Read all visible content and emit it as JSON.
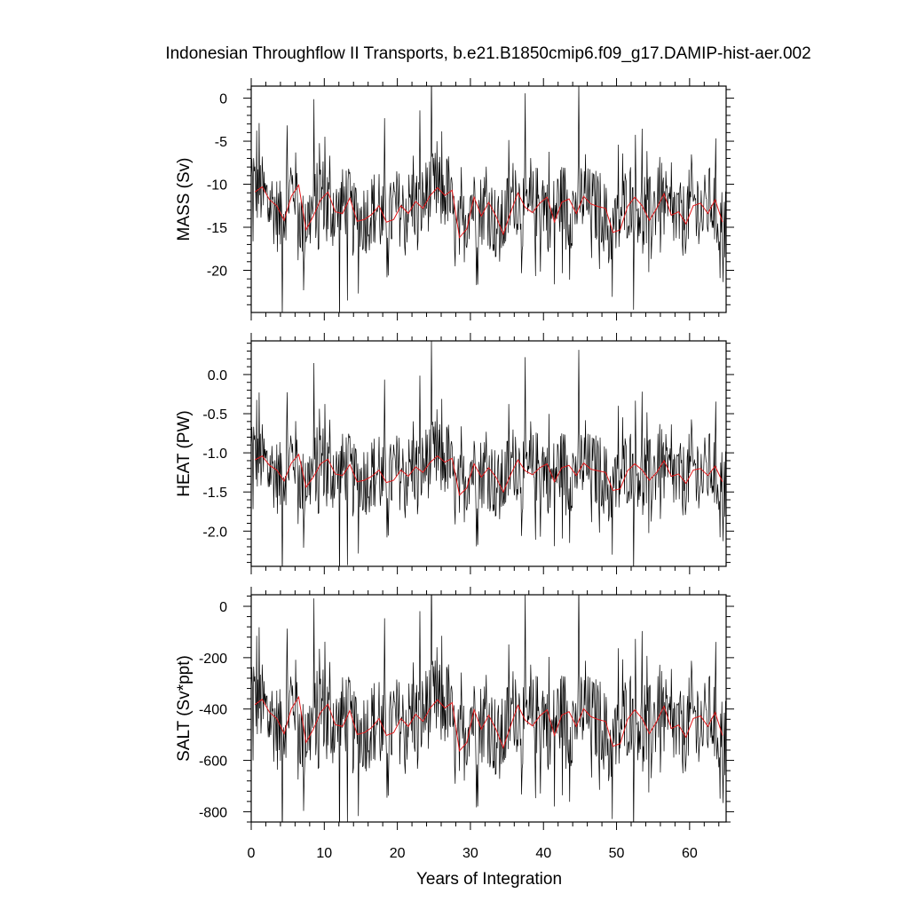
{
  "chart_data": {
    "type": "line",
    "title": "Indonesian Throughflow II Transports, b.e21.B1850cmip6.f09_g17.DAMIP-hist-aer.002",
    "xlabel": "Years of Integration",
    "xlim": [
      0,
      65
    ],
    "x_ticks": [
      "0",
      "10",
      "20",
      "30",
      "40",
      "50",
      "60"
    ],
    "series_colors": {
      "monthly": "#000000",
      "annual": "#e41a1c"
    },
    "panels": [
      {
        "ylabel": "MASS (Sv)",
        "ylim": [
          -24.9,
          1.4
        ],
        "y_ticks": [
          {
            "v": 0,
            "label": "0"
          },
          {
            "v": -5,
            "label": "-5"
          },
          {
            "v": -10,
            "label": "-10"
          },
          {
            "v": -15,
            "label": "-15"
          },
          {
            "v": -20,
            "label": "-20"
          }
        ],
        "annual": [
          -10.9,
          -10.3,
          -11.8,
          -12.5,
          -14.2,
          -11.4,
          -10.1,
          -15.3,
          -13.7,
          -11.8,
          -10.9,
          -13.2,
          -13.4,
          -11.6,
          -14.3,
          -14.1,
          -13.5,
          -12.5,
          -14.4,
          -14.1,
          -12.5,
          -13.4,
          -12.0,
          -12.8,
          -11.3,
          -10.4,
          -11.3,
          -10.7,
          -16.2,
          -15.2,
          -11.5,
          -13.7,
          -12.1,
          -13.7,
          -15.8,
          -13.3,
          -11.0,
          -12.7,
          -13.3,
          -12.2,
          -11.5,
          -14.4,
          -12.1,
          -11.7,
          -13.4,
          -11.4,
          -12.3,
          -12.6,
          -12.8,
          -15.6,
          -15.3,
          -12.6,
          -11.5,
          -12.5,
          -14.2,
          -12.8,
          -11.1,
          -13.6,
          -13.2,
          -14.6,
          -12.5,
          -12.2,
          -13.4,
          -11.8,
          -14.4
        ]
      },
      {
        "ylabel": "HEAT (PW)",
        "ylim": [
          -2.45,
          0.43
        ],
        "y_ticks": [
          {
            "v": 0.0,
            "label": "0.0"
          },
          {
            "v": -0.5,
            "label": "-0.5"
          },
          {
            "v": -1.0,
            "label": "-1.0"
          },
          {
            "v": -1.5,
            "label": "-1.5"
          },
          {
            "v": -2.0,
            "label": "-2.0"
          }
        ],
        "annual": [
          -1.09,
          -1.04,
          -1.16,
          -1.22,
          -1.36,
          -1.13,
          -1.02,
          -1.44,
          -1.31,
          -1.14,
          -1.08,
          -1.27,
          -1.29,
          -1.15,
          -1.37,
          -1.35,
          -1.3,
          -1.22,
          -1.38,
          -1.35,
          -1.22,
          -1.3,
          -1.18,
          -1.25,
          -1.12,
          -1.04,
          -1.12,
          -1.07,
          -1.54,
          -1.45,
          -1.14,
          -1.31,
          -1.19,
          -1.31,
          -1.5,
          -1.28,
          -1.09,
          -1.23,
          -1.28,
          -1.19,
          -1.14,
          -1.37,
          -1.19,
          -1.16,
          -1.29,
          -1.13,
          -1.21,
          -1.23,
          -1.25,
          -1.48,
          -1.46,
          -1.23,
          -1.14,
          -1.22,
          -1.35,
          -1.25,
          -1.1,
          -1.3,
          -1.27,
          -1.39,
          -1.22,
          -1.2,
          -1.29,
          -1.17,
          -1.37
        ]
      },
      {
        "ylabel": "SALT (Sv*ppt)",
        "ylim": [
          -840,
          45
        ],
        "y_ticks": [
          {
            "v": 0,
            "label": "0"
          },
          {
            "v": -200,
            "label": "-200"
          },
          {
            "v": -400,
            "label": "-400"
          },
          {
            "v": -600,
            "label": "-600"
          },
          {
            "v": -800,
            "label": "-800"
          }
        ],
        "annual": [
          -383,
          -362,
          -413,
          -437,
          -496,
          -399,
          -353,
          -530,
          -479,
          -413,
          -381,
          -461,
          -468,
          -406,
          -499,
          -492,
          -472,
          -437,
          -503,
          -492,
          -437,
          -468,
          -420,
          -448,
          -396,
          -364,
          -396,
          -375,
          -563,
          -531,
          -403,
          -479,
          -424,
          -479,
          -551,
          -466,
          -385,
          -444,
          -466,
          -427,
          -403,
          -503,
          -424,
          -410,
          -468,
          -399,
          -430,
          -441,
          -448,
          -545,
          -535,
          -441,
          -403,
          -437,
          -496,
          -448,
          -389,
          -476,
          -462,
          -510,
          -437,
          -427,
          -468,
          -413,
          -503
        ]
      }
    ]
  }
}
